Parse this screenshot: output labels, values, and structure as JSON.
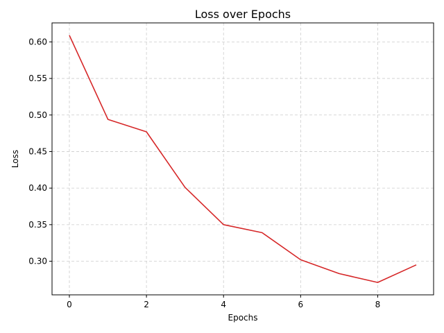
{
  "chart_data": {
    "type": "line",
    "title": "Loss over Epochs",
    "xlabel": "Epochs",
    "ylabel": "Loss",
    "x": [
      0,
      1,
      2,
      3,
      4,
      5,
      6,
      7,
      8,
      9
    ],
    "series": [
      {
        "values": [
          0.609,
          0.494,
          0.477,
          0.401,
          0.35,
          0.339,
          0.302,
          0.283,
          0.271,
          0.295
        ],
        "color": "#d62728"
      }
    ],
    "xlim": [
      -0.45,
      9.45
    ],
    "ylim": [
      0.254,
      0.626
    ],
    "xticks": [
      0,
      2,
      4,
      6,
      8
    ],
    "xtick_labels": [
      "0",
      "2",
      "4",
      "6",
      "8"
    ],
    "yticks": [
      0.3,
      0.35,
      0.4,
      0.45,
      0.5,
      0.55,
      0.6
    ],
    "ytick_labels": [
      "0.30",
      "0.35",
      "0.40",
      "0.45",
      "0.50",
      "0.55",
      "0.60"
    ],
    "grid": true,
    "grid_style": "dashed",
    "grid_color": "#cccccc",
    "legend": "none"
  }
}
